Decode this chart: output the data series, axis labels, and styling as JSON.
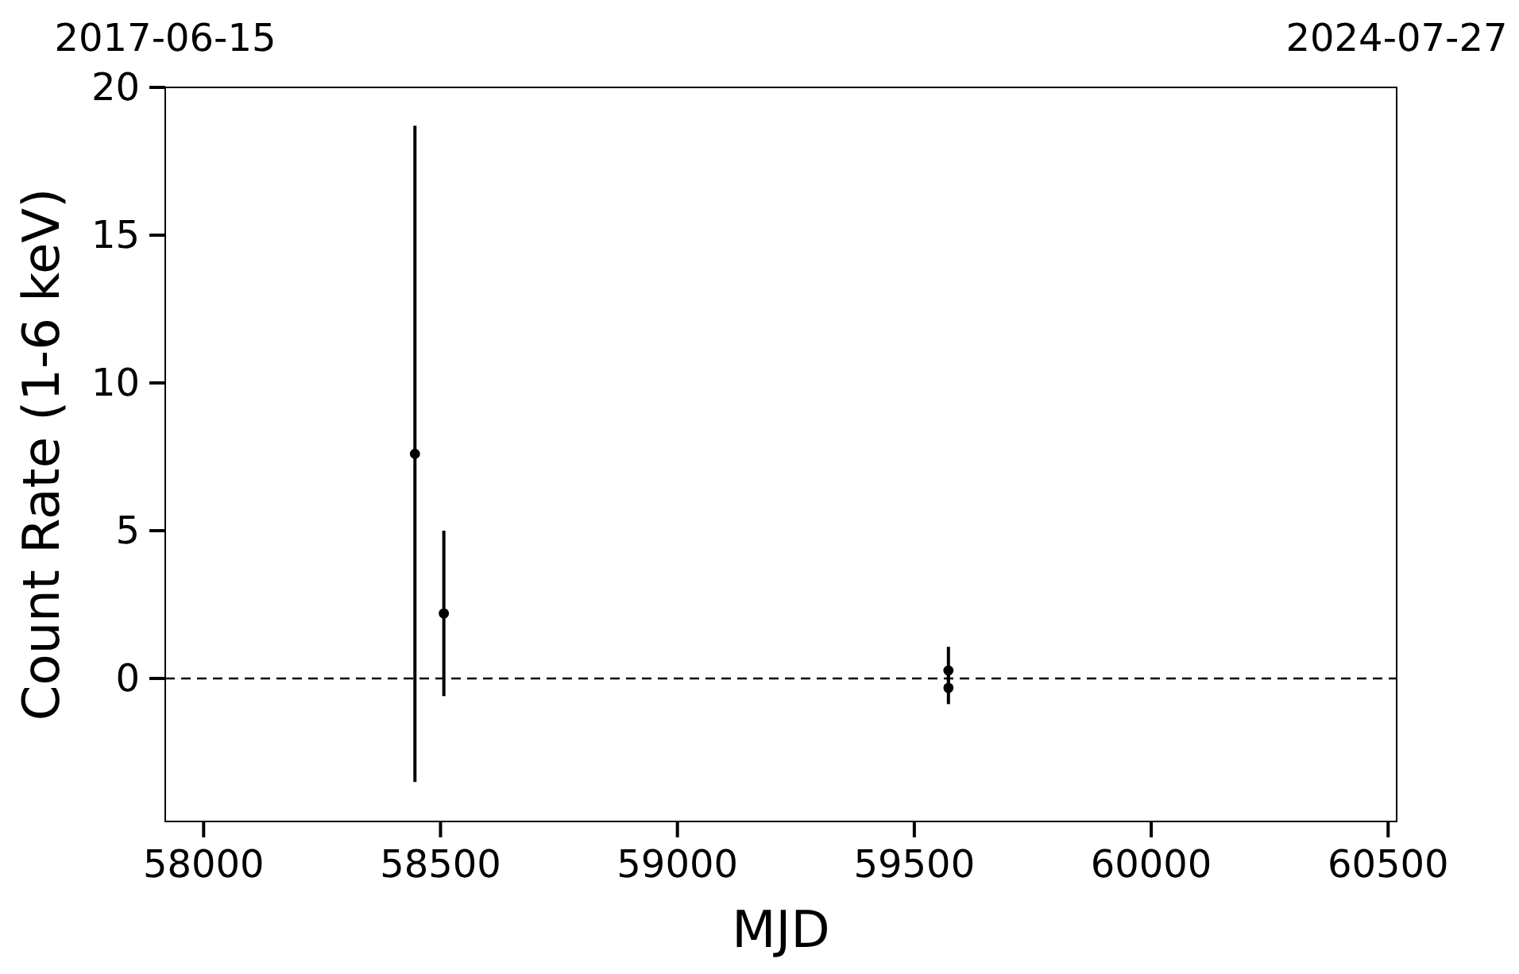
{
  "chart_data": {
    "type": "scatter",
    "xlabel": "MJD",
    "ylabel": "Count Rate (1-6 keV)",
    "x": [
      58446,
      58507,
      59572,
      59572
    ],
    "values": [
      7.6,
      2.2,
      0.27,
      -0.32
    ],
    "errors": [
      11.1,
      2.8,
      0.8,
      0.55
    ],
    "color": "#000000",
    "marker": "circle",
    "grid": false,
    "xlim": [
      57919,
      60518
    ],
    "xticks": [
      58000,
      58500,
      59000,
      59500,
      60000,
      60500
    ],
    "annotations": [
      "2017-06-15",
      "2024-07-27"
    ],
    "ylim": [
      -4.84,
      20
    ],
    "yticks": [
      0,
      5,
      10,
      15,
      20
    ],
    "ref_lines": [
      {
        "axis": "y",
        "value": 0,
        "line_style": "dashed",
        "color": "#000000"
      }
    ]
  }
}
